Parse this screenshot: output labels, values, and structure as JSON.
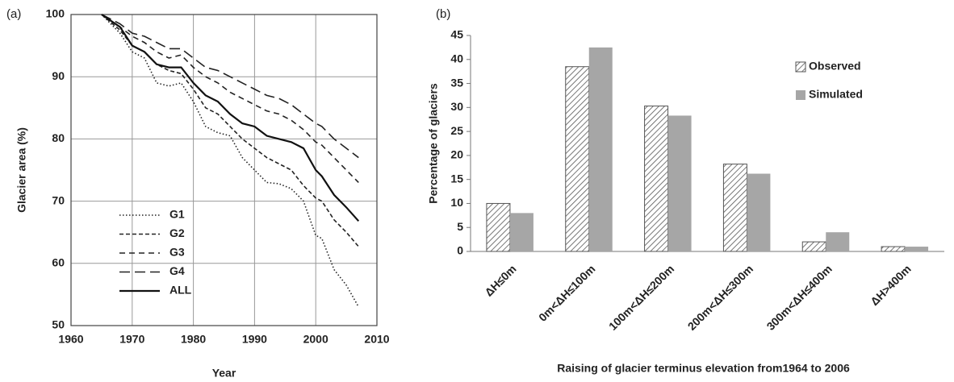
{
  "chart_data": [
    {
      "type": "line",
      "panel_label": "(a)",
      "x_label": "Year",
      "y_label": "Glacier area  (%)",
      "x": [
        1965,
        1968,
        1970,
        1972,
        1974,
        1976,
        1978,
        1980,
        1982,
        1984,
        1986,
        1988,
        1990,
        1992,
        1994,
        1996,
        1998,
        2000,
        2001,
        2003,
        2005,
        2007
      ],
      "series": [
        {
          "name": "G1",
          "color": "#222222",
          "dash": "dotted",
          "values": [
            100,
            97,
            94,
            93,
            89,
            88.5,
            89,
            86,
            82,
            81,
            80.5,
            77,
            75,
            73,
            72.8,
            72,
            70,
            64.5,
            64,
            59,
            56.5,
            53
          ]
        },
        {
          "name": "G2",
          "color": "#222222",
          "dash": "short",
          "values": [
            100,
            97.5,
            95,
            94,
            92,
            91,
            90.5,
            88,
            85,
            84,
            82,
            80,
            78.5,
            77,
            76,
            75,
            72.5,
            70.5,
            70,
            67,
            65,
            62.7
          ]
        },
        {
          "name": "G3",
          "color": "#222222",
          "dash": "medium",
          "values": [
            100,
            98,
            96.5,
            95.5,
            94,
            93,
            93.5,
            91.5,
            90,
            89,
            87.5,
            86.5,
            85.5,
            84.5,
            84,
            83,
            81.5,
            79.5,
            79,
            77,
            75,
            73
          ]
        },
        {
          "name": "G4",
          "color": "#222222",
          "dash": "long",
          "values": [
            100,
            98.5,
            97,
            96.5,
            95.5,
            94.5,
            94.5,
            93,
            91.5,
            91,
            90,
            89,
            88,
            87,
            86.5,
            85.5,
            84,
            82.5,
            82,
            80,
            78.5,
            77
          ]
        },
        {
          "name": "ALL",
          "color": "#111111",
          "dash": "solid",
          "values": [
            100,
            98,
            95,
            94,
            92,
            91.5,
            91.5,
            89,
            87,
            86,
            84,
            82.5,
            82,
            80.5,
            80,
            79.5,
            78.5,
            75,
            74,
            71,
            69,
            66.8
          ]
        }
      ],
      "xlim": [
        1960,
        2010
      ],
      "xticks": [
        1960,
        1970,
        1980,
        1990,
        2000,
        2010
      ],
      "ylim": [
        50,
        100
      ],
      "yticks": [
        50,
        60,
        70,
        80,
        90,
        100
      ],
      "grid": true,
      "legend": "lower-left"
    },
    {
      "type": "bar",
      "panel_label": "(b)",
      "x_label": "Raising of glacier terminus elevation from1964 to 2006",
      "y_label": "Percentage of glaciers",
      "categories": [
        "ΔH≤0m",
        "0m<ΔH≤100m",
        "100m<ΔH≤200m",
        "200m<ΔH≤300m",
        "300m<ΔH≤400m",
        "ΔH>400m"
      ],
      "series": [
        {
          "name": "Observed",
          "color": "#555555",
          "hatch": true,
          "values": [
            10,
            38.5,
            30.3,
            18.2,
            2,
            1
          ]
        },
        {
          "name": "Simulated",
          "color": "#a6a6a6",
          "hatch": false,
          "values": [
            8,
            42.5,
            28.3,
            16.2,
            4,
            1
          ]
        }
      ],
      "ylim": [
        0,
        45
      ],
      "yticks": [
        0,
        5,
        10,
        15,
        20,
        25,
        30,
        35,
        40,
        45
      ],
      "grid": false,
      "legend": "upper-right"
    }
  ]
}
